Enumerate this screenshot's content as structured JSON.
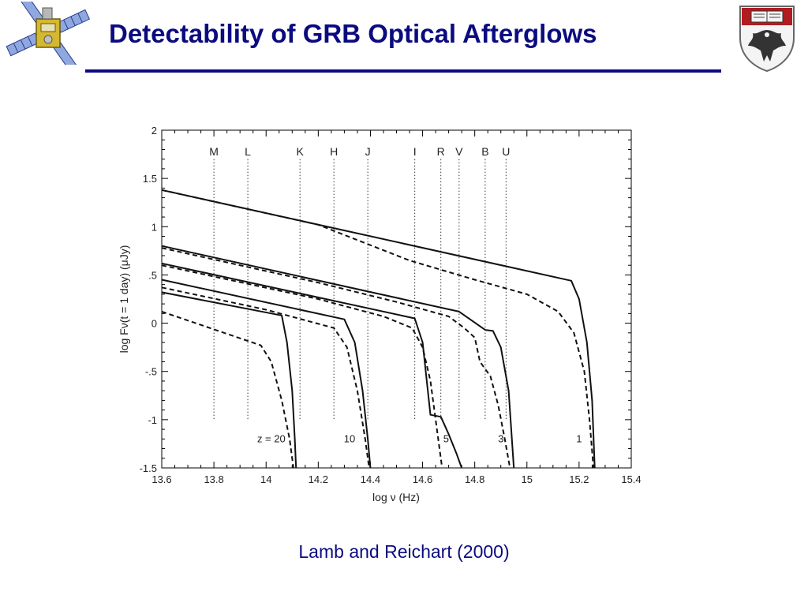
{
  "slide": {
    "title": "Detectability of GRB Optical Afterglows",
    "caption": "Lamb and Reichart (2000)",
    "colors": {
      "title": "#0b0b80",
      "rule": "#0b0b80",
      "crest": "#b01c20"
    },
    "icons": [
      "satellite-logo-icon",
      "university-crest-icon"
    ]
  },
  "chart_data": {
    "type": "line",
    "xlabel": "log ν (Hz)",
    "ylabel": "log Fν(t = 1 day) (μJy)",
    "xlim": [
      13.6,
      15.4
    ],
    "ylim": [
      -1.5,
      2
    ],
    "x_ticks": [
      13.6,
      13.8,
      14,
      14.2,
      14.4,
      14.6,
      14.8,
      15,
      15.2,
      15.4
    ],
    "x_tick_labels": [
      "13.6",
      "13.8",
      "14",
      "14.2",
      "14.4",
      "14.6",
      "14.8",
      "15",
      "15.2",
      "15.4"
    ],
    "y_ticks": [
      -1.5,
      -1,
      -0.5,
      0,
      0.5,
      1,
      1.5,
      2
    ],
    "y_tick_labels": [
      "-1.5",
      "-1",
      "-.5",
      "0",
      ".5",
      "1",
      "1.5",
      "2"
    ],
    "grid": false,
    "bands": [
      {
        "name": "M",
        "x": 13.8
      },
      {
        "name": "L",
        "x": 13.93
      },
      {
        "name": "K",
        "x": 14.13
      },
      {
        "name": "H",
        "x": 14.26
      },
      {
        "name": "J",
        "x": 14.39
      },
      {
        "name": "I",
        "x": 14.57
      },
      {
        "name": "R",
        "x": 14.67
      },
      {
        "name": "V",
        "x": 14.74
      },
      {
        "name": "B",
        "x": 14.84
      },
      {
        "name": "U",
        "x": 14.92
      }
    ],
    "redshift_labels": [
      {
        "text": "z = 20",
        "x": 14.02,
        "y": -1.2
      },
      {
        "text": "10",
        "x": 14.32,
        "y": -1.2
      },
      {
        "text": "5",
        "x": 14.69,
        "y": -1.2
      },
      {
        "text": "3",
        "x": 14.9,
        "y": -1.2
      },
      {
        "text": "1",
        "x": 15.2,
        "y": -1.2
      }
    ],
    "series": [
      {
        "style": "solid",
        "points": [
          [
            13.6,
            1.38
          ],
          [
            15.17,
            0.44
          ],
          [
            15.2,
            0.25
          ],
          [
            15.23,
            -0.2
          ],
          [
            15.25,
            -0.8
          ],
          [
            15.26,
            -1.5
          ]
        ]
      },
      {
        "style": "dashed",
        "points": [
          [
            13.6,
            1.38
          ],
          [
            14.2,
            1.02
          ],
          [
            14.55,
            0.65
          ],
          [
            14.8,
            0.45
          ],
          [
            15.0,
            0.3
          ],
          [
            15.12,
            0.12
          ],
          [
            15.18,
            -0.1
          ],
          [
            15.22,
            -0.5
          ],
          [
            15.24,
            -1.0
          ],
          [
            15.255,
            -1.5
          ]
        ]
      },
      {
        "style": "solid",
        "points": [
          [
            13.6,
            0.8
          ],
          [
            14.74,
            0.12
          ],
          [
            14.84,
            -0.07
          ],
          [
            14.87,
            -0.08
          ],
          [
            14.9,
            -0.25
          ],
          [
            14.93,
            -0.7
          ],
          [
            14.95,
            -1.5
          ]
        ]
      },
      {
        "style": "dashed",
        "points": [
          [
            13.6,
            0.78
          ],
          [
            14.2,
            0.42
          ],
          [
            14.5,
            0.22
          ],
          [
            14.7,
            0.07
          ],
          [
            14.76,
            -0.05
          ],
          [
            14.8,
            -0.15
          ],
          [
            14.82,
            -0.4
          ],
          [
            14.86,
            -0.55
          ],
          [
            14.89,
            -0.85
          ],
          [
            14.915,
            -1.2
          ],
          [
            14.935,
            -1.5
          ]
        ]
      },
      {
        "style": "solid",
        "points": [
          [
            13.6,
            0.62
          ],
          [
            14.57,
            0.05
          ],
          [
            14.6,
            -0.2
          ],
          [
            14.62,
            -0.7
          ],
          [
            14.63,
            -0.95
          ],
          [
            14.67,
            -0.97
          ],
          [
            14.7,
            -1.15
          ],
          [
            14.73,
            -1.35
          ],
          [
            14.75,
            -1.5
          ]
        ]
      },
      {
        "style": "dashed",
        "points": [
          [
            13.6,
            0.6
          ],
          [
            14.2,
            0.25
          ],
          [
            14.45,
            0.07
          ],
          [
            14.56,
            -0.05
          ],
          [
            14.6,
            -0.25
          ],
          [
            14.63,
            -0.6
          ],
          [
            14.65,
            -1.0
          ],
          [
            14.665,
            -1.3
          ],
          [
            14.675,
            -1.5
          ]
        ]
      },
      {
        "style": "solid",
        "points": [
          [
            13.6,
            0.45
          ],
          [
            14.3,
            0.04
          ],
          [
            14.34,
            -0.2
          ],
          [
            14.37,
            -0.7
          ],
          [
            14.39,
            -1.2
          ],
          [
            14.4,
            -1.5
          ]
        ]
      },
      {
        "style": "dashed",
        "points": [
          [
            13.6,
            0.37
          ],
          [
            14.0,
            0.14
          ],
          [
            14.26,
            -0.05
          ],
          [
            14.31,
            -0.25
          ],
          [
            14.35,
            -0.7
          ],
          [
            14.38,
            -1.2
          ],
          [
            14.395,
            -1.5
          ]
        ]
      },
      {
        "style": "solid",
        "points": [
          [
            13.6,
            0.32
          ],
          [
            14.06,
            0.08
          ],
          [
            14.08,
            -0.2
          ],
          [
            14.1,
            -0.7
          ],
          [
            14.11,
            -1.2
          ],
          [
            14.115,
            -1.5
          ]
        ]
      },
      {
        "style": "dashed",
        "points": [
          [
            13.6,
            0.12
          ],
          [
            13.98,
            -0.23
          ],
          [
            14.02,
            -0.4
          ],
          [
            14.06,
            -0.8
          ],
          [
            14.09,
            -1.2
          ],
          [
            14.105,
            -1.5
          ]
        ]
      }
    ]
  }
}
